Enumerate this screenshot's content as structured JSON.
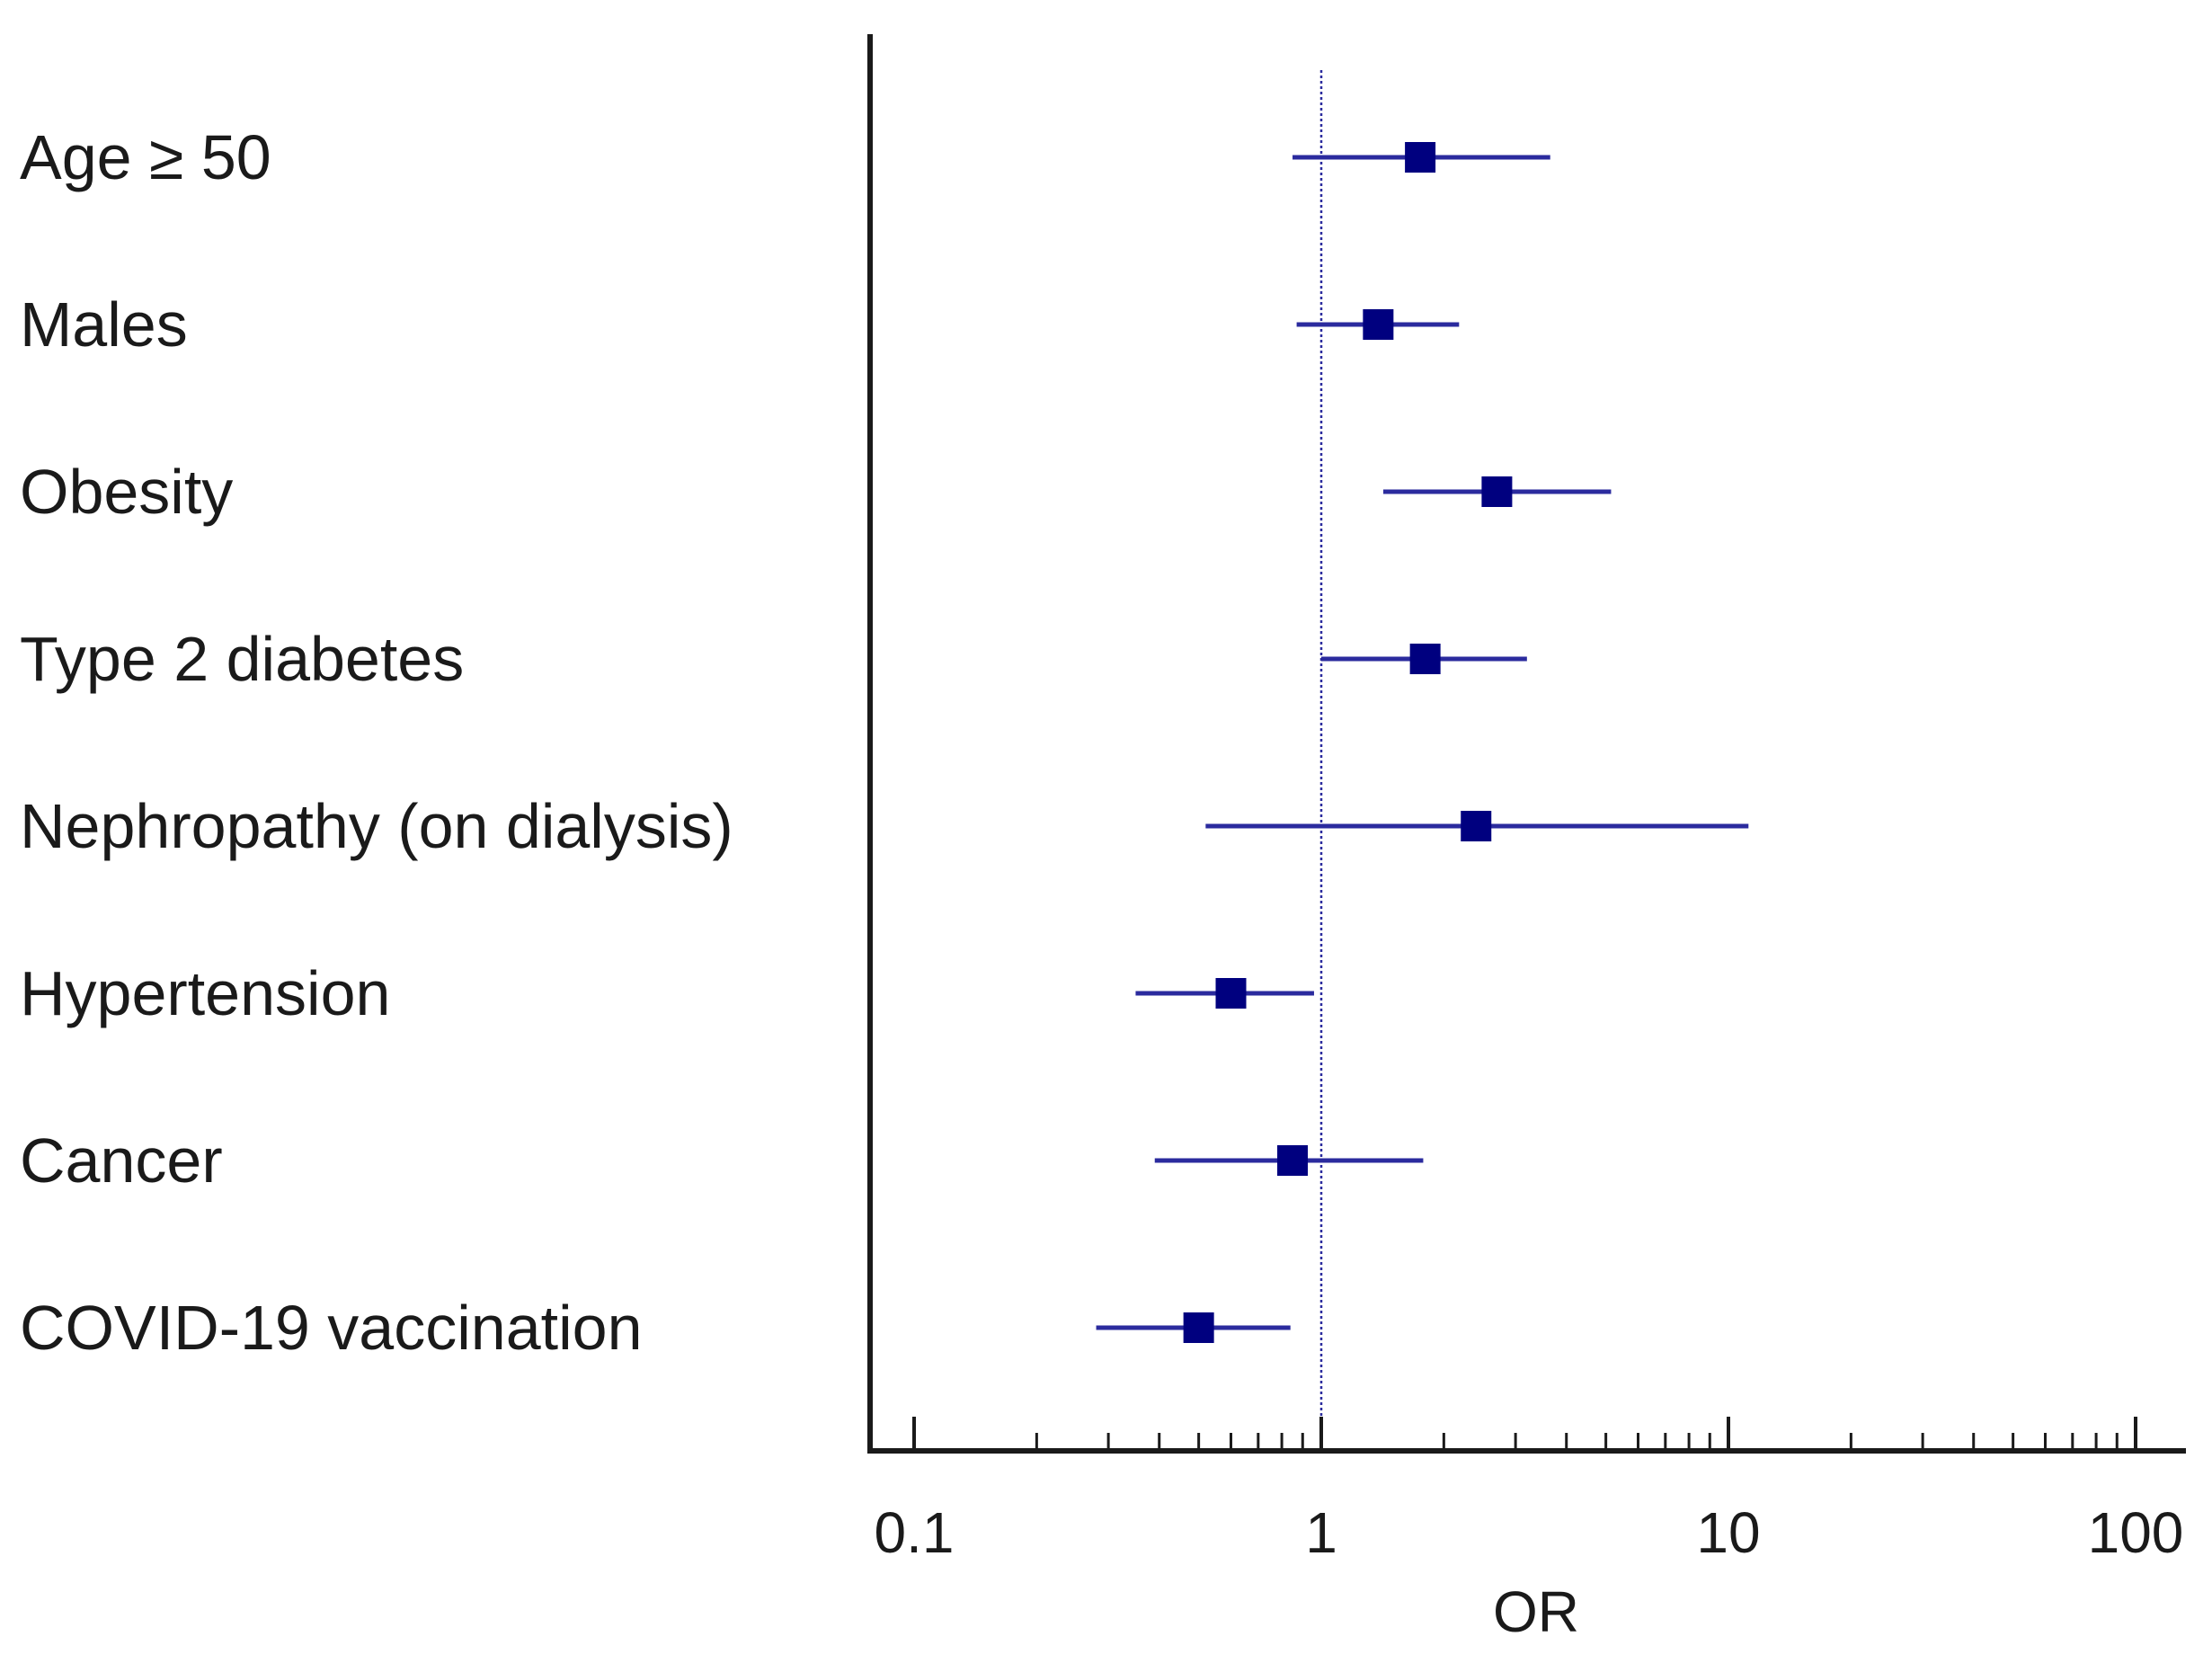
{
  "chart_data": {
    "type": "forest",
    "scale": "log",
    "xlabel": "OR",
    "xlim": [
      0.08,
      130
    ],
    "reference_line": 1,
    "ticks": [
      {
        "value": 0.1,
        "label": "0.1"
      },
      {
        "value": 1,
        "label": "1"
      },
      {
        "value": 10,
        "label": "10"
      },
      {
        "value": 100,
        "label": "100"
      }
    ],
    "rows": [
      {
        "label": "Age ≥ 50",
        "or": 1.75,
        "lower": 0.85,
        "upper": 3.65
      },
      {
        "label": "Males",
        "or": 1.38,
        "lower": 0.87,
        "upper": 2.18
      },
      {
        "label": "Obesity",
        "or": 2.7,
        "lower": 1.42,
        "upper": 5.15
      },
      {
        "label": "Type 2 diabetes",
        "or": 1.8,
        "lower": 1.0,
        "upper": 3.2
      },
      {
        "label": "Nephropathy (on dialysis)",
        "or": 2.4,
        "lower": 0.52,
        "upper": 11.2
      },
      {
        "label": "Hypertension",
        "or": 0.6,
        "lower": 0.35,
        "upper": 0.96
      },
      {
        "label": "Cancer",
        "or": 0.85,
        "lower": 0.39,
        "upper": 1.78
      },
      {
        "label": "COVID-19 vaccination",
        "or": 0.5,
        "lower": 0.28,
        "upper": 0.84
      }
    ],
    "colors": {
      "marker": "#00007f",
      "interval": "#2b2b9e",
      "reference": "#2b2b9e",
      "axis": "#1a1a1a"
    }
  }
}
